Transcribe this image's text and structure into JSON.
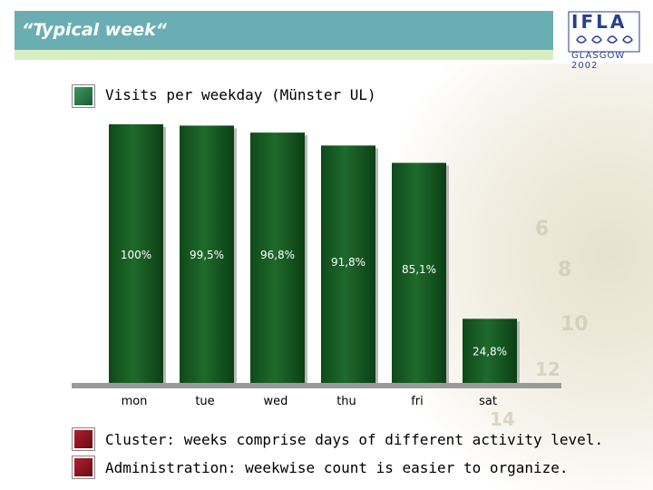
{
  "header": {
    "title": "“Typical week“",
    "logo_letters": "IFLA",
    "logo_sub": "GLASGOW 2002"
  },
  "colors": {
    "header_teal": "#6aaeb4",
    "bar_green": "#1e6a2c",
    "bar_label": "#ffffff",
    "bullet_green": "#2d7a48",
    "bullet_red": "#8a1020"
  },
  "chart_data": {
    "type": "bar",
    "title": "Visits per weekday (Münster UL)",
    "categories": [
      "mon",
      "tue",
      "wed",
      "thu",
      "fri",
      "sat"
    ],
    "values": [
      100,
      99.5,
      96.8,
      91.8,
      85.1,
      24.8
    ],
    "value_labels": [
      "100%",
      "99,5%",
      "96,8%",
      "91,8%",
      "85,1%",
      "24,8%"
    ],
    "ylim": [
      0,
      100
    ],
    "grid": false,
    "legend": "none"
  },
  "bullets": [
    "Cluster: weeks comprise days of different activity level.",
    "Administration: weekwise count is easier to organize."
  ]
}
